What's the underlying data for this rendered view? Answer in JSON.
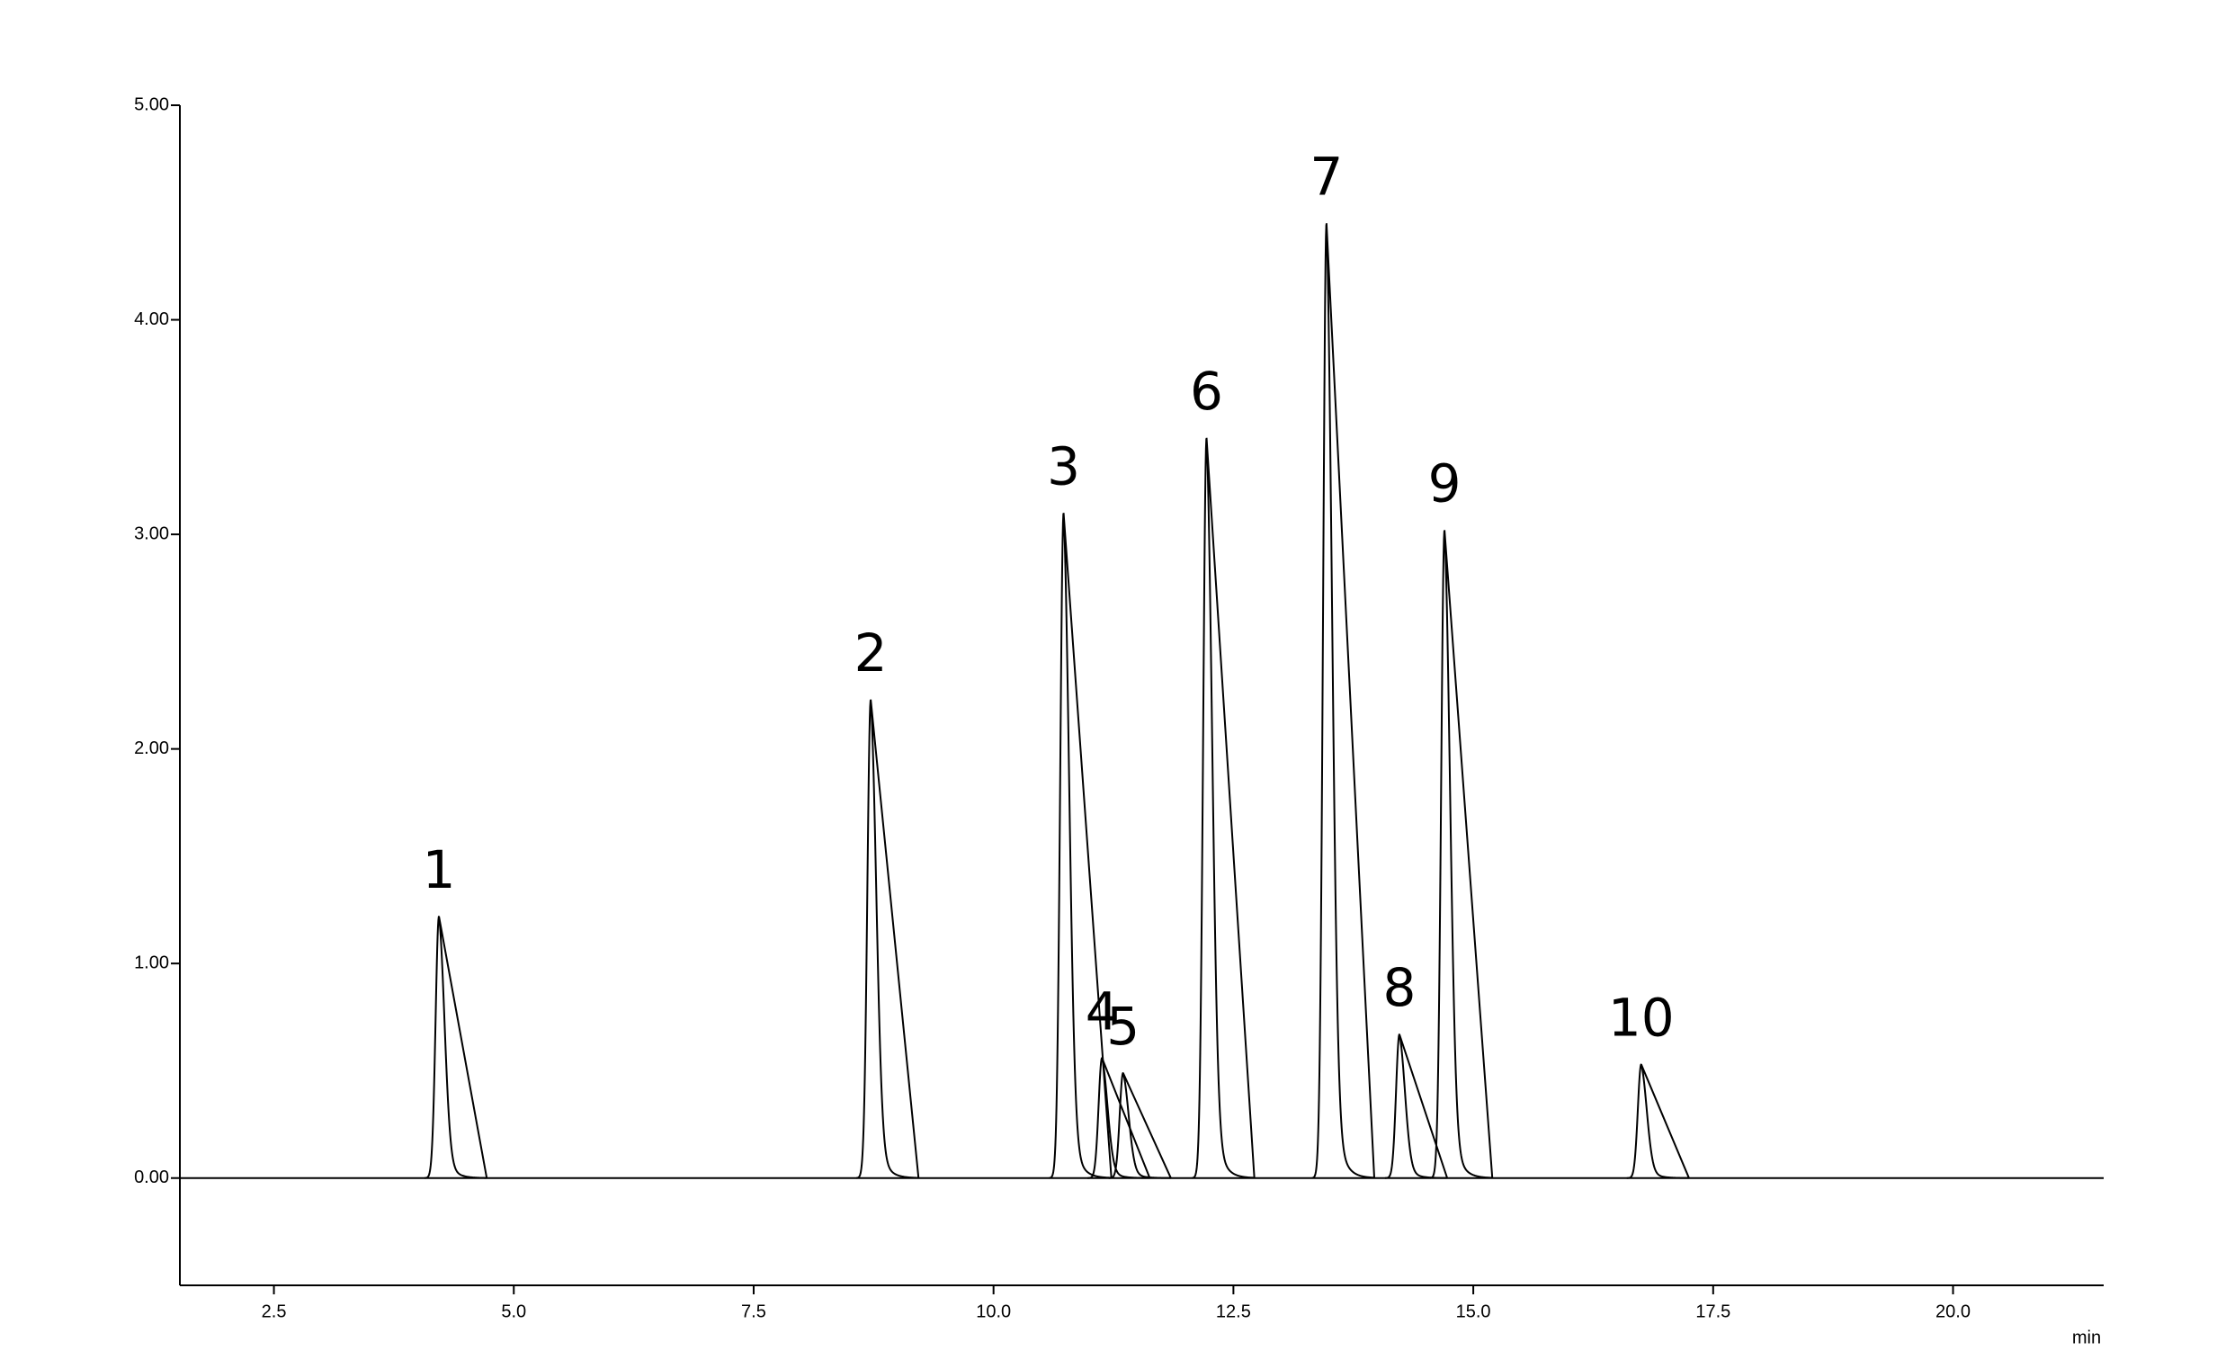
{
  "chart_data": {
    "type": "chromatogram",
    "x_label": "min",
    "peaks": {
      "labels": [
        "1",
        "2",
        "3",
        "4",
        "5",
        "6",
        "7",
        "8",
        "9",
        "10"
      ],
      "x": [
        4.22,
        8.72,
        10.73,
        11.13,
        11.35,
        12.22,
        13.47,
        14.23,
        14.7,
        16.75
      ],
      "values": [
        1.22,
        2.23,
        3.1,
        0.56,
        0.49,
        3.45,
        4.45,
        0.67,
        3.02,
        0.53
      ]
    },
    "color": "#000000",
    "xlim": [
      1.52,
      21.57
    ],
    "ylim": [
      -0.5,
      5.0
    ],
    "xticks": [
      2.5,
      {
        "value": 5,
        "label": "5.0"
      },
      7.5,
      {
        "value": 10,
        "label": "10.0"
      },
      12.5,
      {
        "value": 15,
        "label": "15.0"
      },
      17.5,
      {
        "value": 20,
        "label": "20.0"
      }
    ],
    "yticks": [
      {
        "value": 0,
        "label": "0.00"
      },
      {
        "value": 1,
        "label": "1.00"
      },
      {
        "value": 2,
        "label": "2.00"
      },
      {
        "value": 3,
        "label": "3.00"
      },
      {
        "value": 4,
        "label": "4.00"
      },
      {
        "value": 5,
        "label": "5.00"
      }
    ]
  }
}
